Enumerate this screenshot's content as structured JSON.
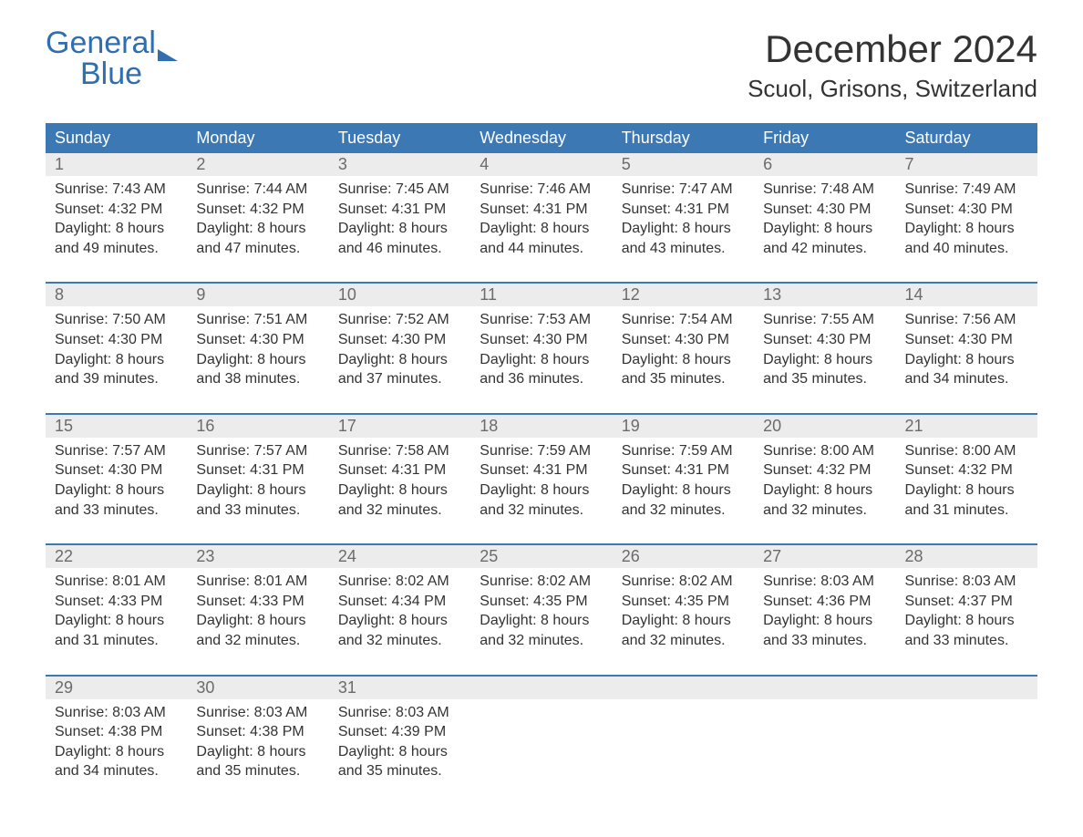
{
  "brand": {
    "line1": "General",
    "line2": "Blue"
  },
  "title": "December 2024",
  "subtitle": "Scuol, Grisons, Switzerland",
  "colors": {
    "header_bg": "#3c78b4",
    "header_text": "#ffffff",
    "daynum_bg": "#ececec",
    "daynum_text": "#6b6b6b",
    "body_text": "#333333",
    "week_rule": "#3c78b4",
    "brand": "#2f6faf",
    "page_bg": "#ffffff"
  },
  "typography": {
    "title_fontsize": 42,
    "subtitle_fontsize": 26,
    "header_fontsize": 18,
    "body_fontsize": 16
  },
  "layout": {
    "columns": 7,
    "rows": 5
  },
  "labels": {
    "sunrise": "Sunrise:",
    "sunset": "Sunset:",
    "daylight": "Daylight:"
  },
  "weekdays": [
    "Sunday",
    "Monday",
    "Tuesday",
    "Wednesday",
    "Thursday",
    "Friday",
    "Saturday"
  ],
  "weeks": [
    [
      {
        "day": "1",
        "sunrise": "7:43 AM",
        "sunset": "4:32 PM",
        "daylight": "8 hours and 49 minutes."
      },
      {
        "day": "2",
        "sunrise": "7:44 AM",
        "sunset": "4:32 PM",
        "daylight": "8 hours and 47 minutes."
      },
      {
        "day": "3",
        "sunrise": "7:45 AM",
        "sunset": "4:31 PM",
        "daylight": "8 hours and 46 minutes."
      },
      {
        "day": "4",
        "sunrise": "7:46 AM",
        "sunset": "4:31 PM",
        "daylight": "8 hours and 44 minutes."
      },
      {
        "day": "5",
        "sunrise": "7:47 AM",
        "sunset": "4:31 PM",
        "daylight": "8 hours and 43 minutes."
      },
      {
        "day": "6",
        "sunrise": "7:48 AM",
        "sunset": "4:30 PM",
        "daylight": "8 hours and 42 minutes."
      },
      {
        "day": "7",
        "sunrise": "7:49 AM",
        "sunset": "4:30 PM",
        "daylight": "8 hours and 40 minutes."
      }
    ],
    [
      {
        "day": "8",
        "sunrise": "7:50 AM",
        "sunset": "4:30 PM",
        "daylight": "8 hours and 39 minutes."
      },
      {
        "day": "9",
        "sunrise": "7:51 AM",
        "sunset": "4:30 PM",
        "daylight": "8 hours and 38 minutes."
      },
      {
        "day": "10",
        "sunrise": "7:52 AM",
        "sunset": "4:30 PM",
        "daylight": "8 hours and 37 minutes."
      },
      {
        "day": "11",
        "sunrise": "7:53 AM",
        "sunset": "4:30 PM",
        "daylight": "8 hours and 36 minutes."
      },
      {
        "day": "12",
        "sunrise": "7:54 AM",
        "sunset": "4:30 PM",
        "daylight": "8 hours and 35 minutes."
      },
      {
        "day": "13",
        "sunrise": "7:55 AM",
        "sunset": "4:30 PM",
        "daylight": "8 hours and 35 minutes."
      },
      {
        "day": "14",
        "sunrise": "7:56 AM",
        "sunset": "4:30 PM",
        "daylight": "8 hours and 34 minutes."
      }
    ],
    [
      {
        "day": "15",
        "sunrise": "7:57 AM",
        "sunset": "4:30 PM",
        "daylight": "8 hours and 33 minutes."
      },
      {
        "day": "16",
        "sunrise": "7:57 AM",
        "sunset": "4:31 PM",
        "daylight": "8 hours and 33 minutes."
      },
      {
        "day": "17",
        "sunrise": "7:58 AM",
        "sunset": "4:31 PM",
        "daylight": "8 hours and 32 minutes."
      },
      {
        "day": "18",
        "sunrise": "7:59 AM",
        "sunset": "4:31 PM",
        "daylight": "8 hours and 32 minutes."
      },
      {
        "day": "19",
        "sunrise": "7:59 AM",
        "sunset": "4:31 PM",
        "daylight": "8 hours and 32 minutes."
      },
      {
        "day": "20",
        "sunrise": "8:00 AM",
        "sunset": "4:32 PM",
        "daylight": "8 hours and 32 minutes."
      },
      {
        "day": "21",
        "sunrise": "8:00 AM",
        "sunset": "4:32 PM",
        "daylight": "8 hours and 31 minutes."
      }
    ],
    [
      {
        "day": "22",
        "sunrise": "8:01 AM",
        "sunset": "4:33 PM",
        "daylight": "8 hours and 31 minutes."
      },
      {
        "day": "23",
        "sunrise": "8:01 AM",
        "sunset": "4:33 PM",
        "daylight": "8 hours and 32 minutes."
      },
      {
        "day": "24",
        "sunrise": "8:02 AM",
        "sunset": "4:34 PM",
        "daylight": "8 hours and 32 minutes."
      },
      {
        "day": "25",
        "sunrise": "8:02 AM",
        "sunset": "4:35 PM",
        "daylight": "8 hours and 32 minutes."
      },
      {
        "day": "26",
        "sunrise": "8:02 AM",
        "sunset": "4:35 PM",
        "daylight": "8 hours and 32 minutes."
      },
      {
        "day": "27",
        "sunrise": "8:03 AM",
        "sunset": "4:36 PM",
        "daylight": "8 hours and 33 minutes."
      },
      {
        "day": "28",
        "sunrise": "8:03 AM",
        "sunset": "4:37 PM",
        "daylight": "8 hours and 33 minutes."
      }
    ],
    [
      {
        "day": "29",
        "sunrise": "8:03 AM",
        "sunset": "4:38 PM",
        "daylight": "8 hours and 34 minutes."
      },
      {
        "day": "30",
        "sunrise": "8:03 AM",
        "sunset": "4:38 PM",
        "daylight": "8 hours and 35 minutes."
      },
      {
        "day": "31",
        "sunrise": "8:03 AM",
        "sunset": "4:39 PM",
        "daylight": "8 hours and 35 minutes."
      },
      null,
      null,
      null,
      null
    ]
  ]
}
